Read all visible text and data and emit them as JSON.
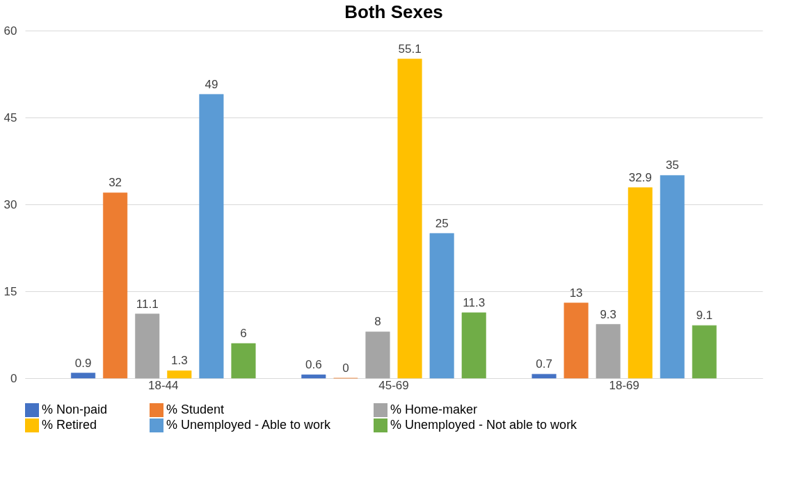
{
  "chart_data": {
    "type": "bar",
    "title": "Both Sexes",
    "categories": [
      "18-44",
      "45-69",
      "18-69"
    ],
    "series": [
      {
        "name": "% Non-paid",
        "color": "#4472c4",
        "values": [
          0.9,
          0.6,
          0.7
        ]
      },
      {
        "name": "% Student",
        "color": "#ed7d31",
        "values": [
          32,
          0,
          13
        ]
      },
      {
        "name": "% Home-maker",
        "color": "#a5a5a5",
        "values": [
          11.1,
          8,
          9.3
        ]
      },
      {
        "name": "% Retired",
        "color": "#ffc000",
        "values": [
          1.3,
          55.1,
          32.9
        ]
      },
      {
        "name": "% Unemployed - Able to work",
        "color": "#5b9bd5",
        "values": [
          49,
          25,
          35
        ]
      },
      {
        "name": "% Unemployed - Not able to work",
        "color": "#70ad47",
        "values": [
          6,
          11.3,
          9.1
        ]
      }
    ],
    "ylim": [
      0,
      60
    ],
    "yticks": [
      0,
      15,
      30,
      45,
      60
    ],
    "grid": "y",
    "legend": "bottom",
    "data_labels": true
  }
}
